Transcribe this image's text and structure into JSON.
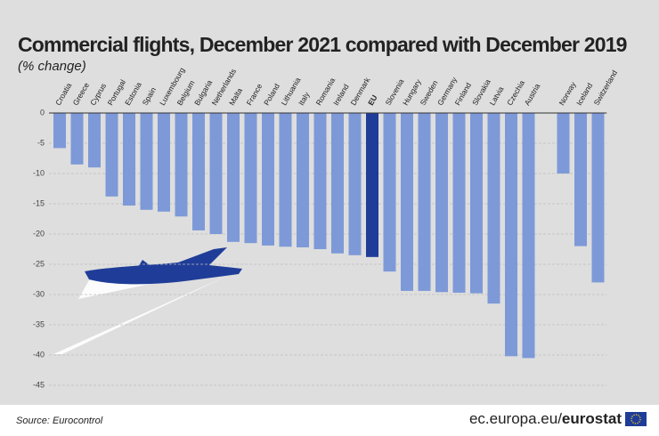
{
  "chart_data": {
    "type": "bar",
    "title": "Commercial flights, December 2021 compared with December 2019",
    "subtitle": "(% change)",
    "categories": [
      "Croatia",
      "Greece",
      "Cyprus",
      "Portugal",
      "Estonia",
      "Spain",
      "Luxembourg",
      "Belgium",
      "Bulgaria",
      "Netherlands",
      "Malta",
      "France",
      "Poland",
      "Lithuania",
      "Italy",
      "Romania",
      "Ireland",
      "Denmark",
      "EU",
      "Slovenia",
      "Hungary",
      "Sweden",
      "Germany",
      "Finland",
      "Slovakia",
      "Latvia",
      "Czechia",
      "Austria",
      null,
      "Norway",
      "Iceland",
      "Switzerland"
    ],
    "values": [
      -5.8,
      -8.5,
      -9,
      -13.8,
      -15.3,
      -16,
      -16.3,
      -17.1,
      -19.4,
      -20,
      -21.3,
      -21.5,
      -21.9,
      -22.1,
      -22.2,
      -22.5,
      -23.2,
      -23.5,
      -23.8,
      -26.2,
      -29.4,
      -29.4,
      -29.6,
      -29.7,
      -29.8,
      -31.5,
      -40.2,
      -40.5,
      null,
      -10,
      -22,
      -28
    ],
    "color": "#7d99d8",
    "highlight_index": 18,
    "highlight_color": "#1f3d98",
    "ylim": [
      -45,
      0
    ],
    "yticks": [
      0,
      -5,
      -10,
      -15,
      -20,
      -25,
      -30,
      -35,
      -40,
      -45
    ],
    "grid": true,
    "source": "Source: Eurocontrol",
    "site": "ec.europa.eu/",
    "brand": "eurostat"
  }
}
